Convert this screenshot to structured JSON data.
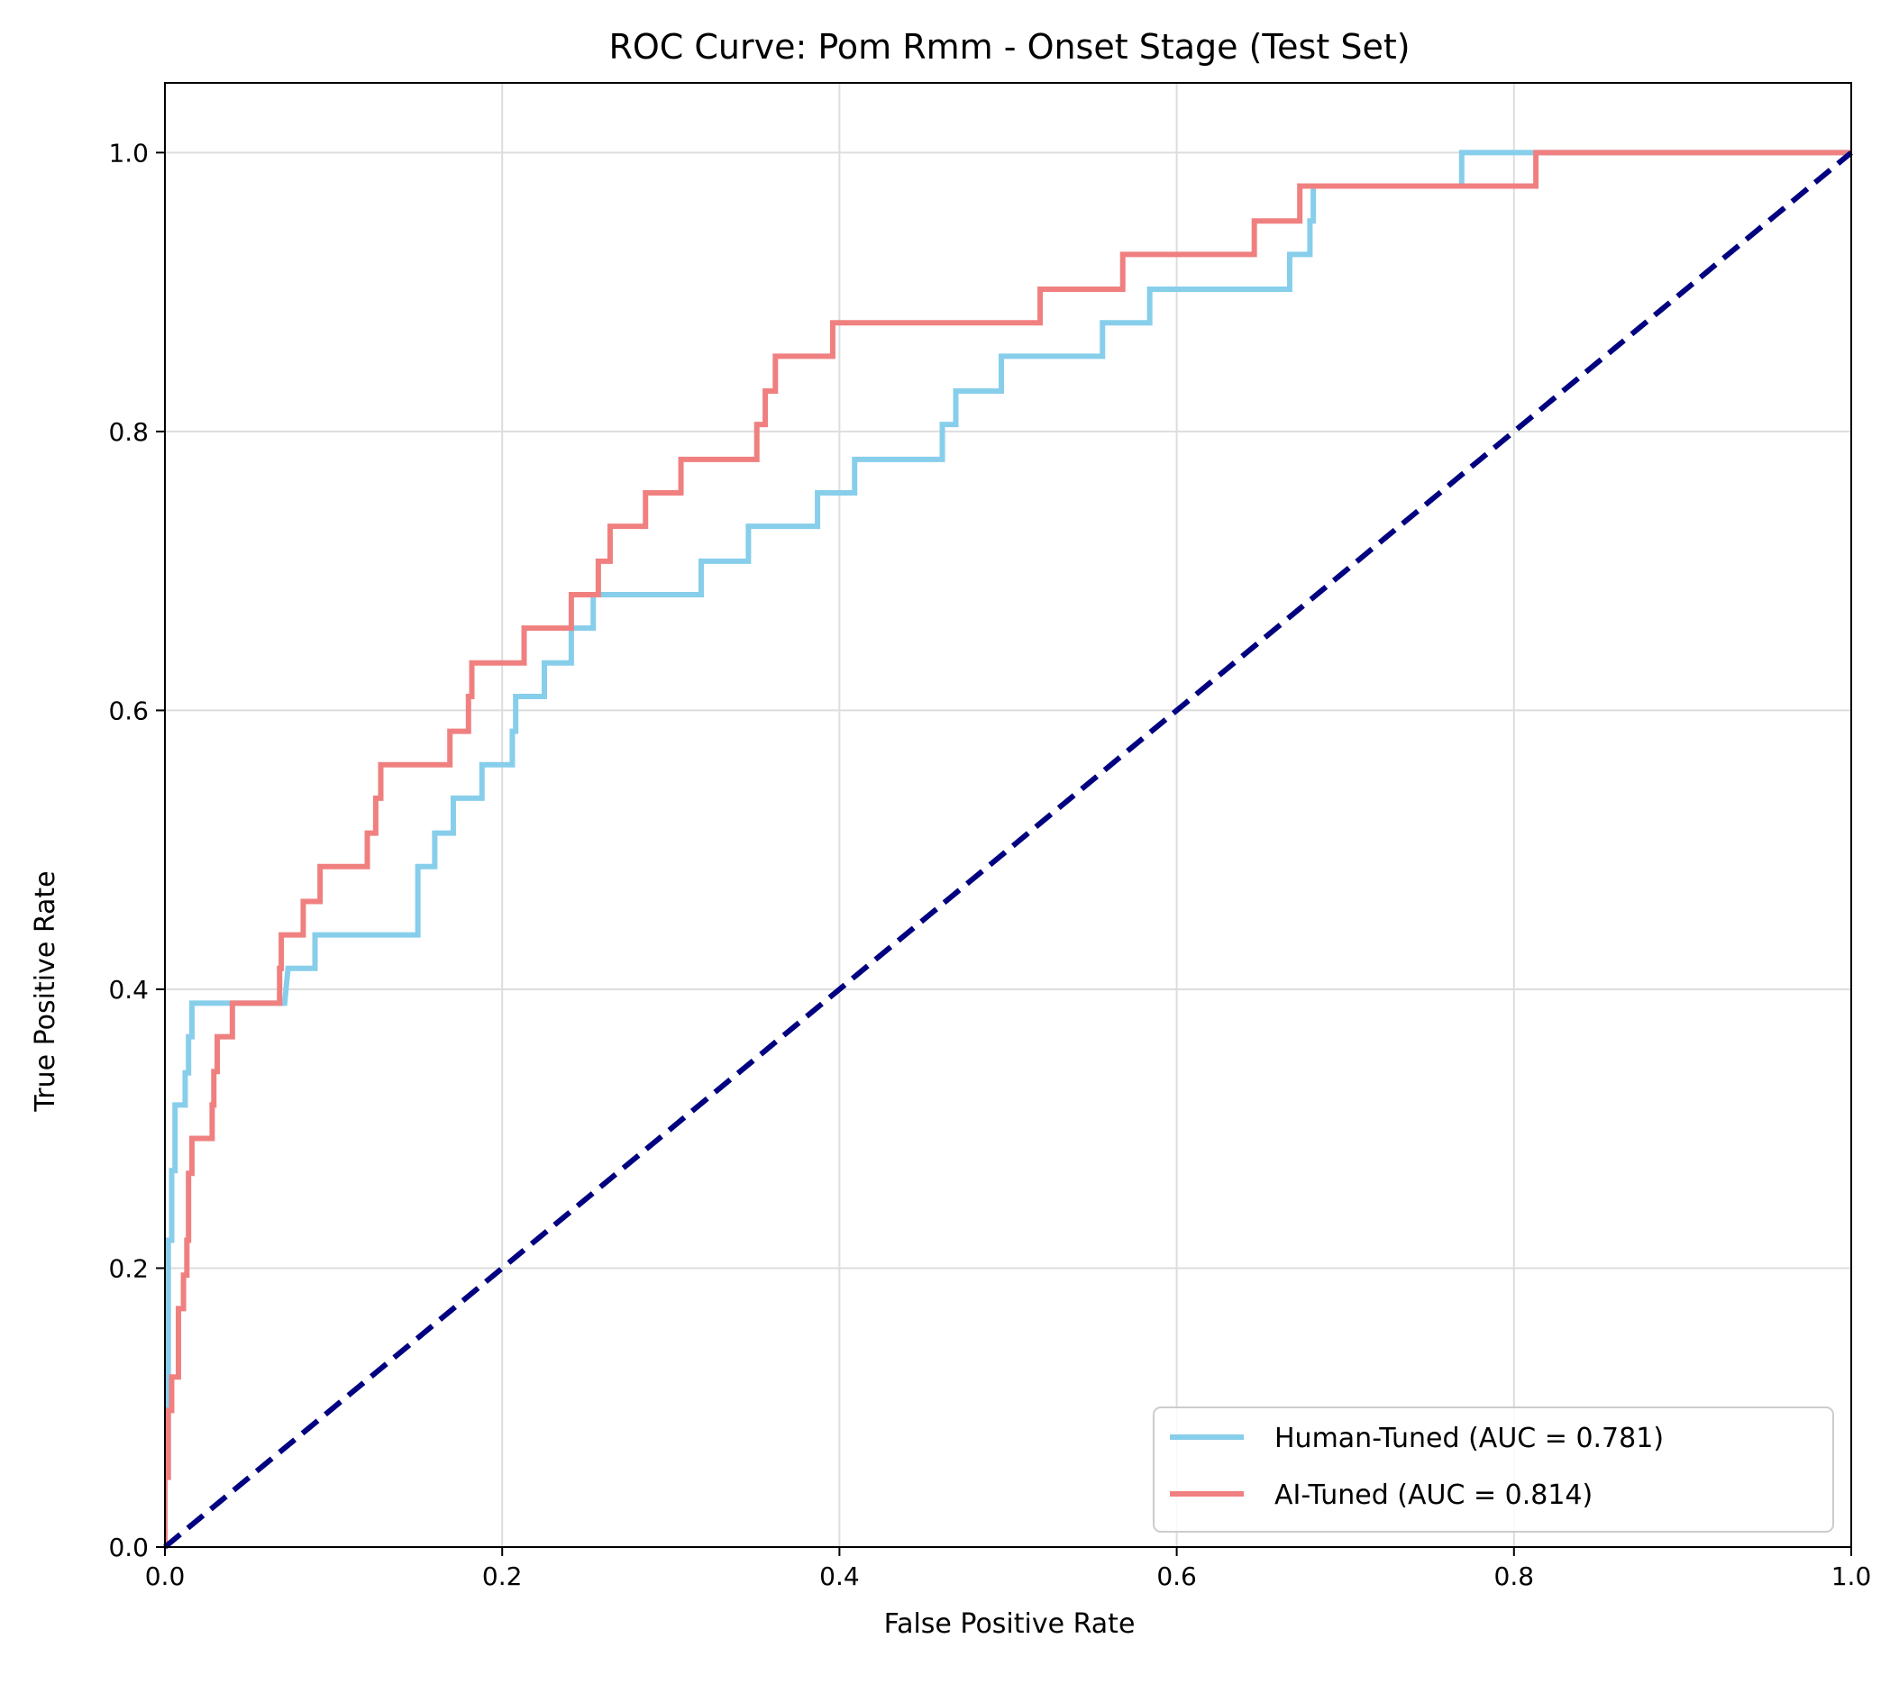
{
  "chart_data": {
    "type": "line",
    "title": "ROC Curve: Pom Rmm - Onset Stage (Test Set)",
    "xlabel": "False Positive Rate",
    "ylabel": "True Positive Rate",
    "xlim": [
      0.0,
      1.0
    ],
    "ylim": [
      0.0,
      1.05
    ],
    "xticks": [
      "0.0",
      "0.2",
      "0.4",
      "0.6",
      "0.8",
      "1.0"
    ],
    "yticks": [
      "0.0",
      "0.2",
      "0.4",
      "0.6",
      "0.8",
      "1.0"
    ],
    "grid": true,
    "legend_position": "bottom-right",
    "reference_line": {
      "x": [
        0,
        1
      ],
      "y": [
        0,
        1
      ],
      "color": "#000080",
      "style": "dashed"
    },
    "series": [
      {
        "name": "Human-Tuned (AUC = 0.781)",
        "color": "#87CEEB",
        "points": [
          [
            0,
            0
          ],
          [
            0,
            0.1
          ],
          [
            0.002,
            0.1
          ],
          [
            0.002,
            0.22
          ],
          [
            0.004,
            0.22
          ],
          [
            0.004,
            0.27
          ],
          [
            0.006,
            0.27
          ],
          [
            0.006,
            0.317
          ],
          [
            0.012,
            0.317
          ],
          [
            0.012,
            0.34
          ],
          [
            0.014,
            0.34
          ],
          [
            0.014,
            0.366
          ],
          [
            0.016,
            0.366
          ],
          [
            0.016,
            0.39
          ],
          [
            0.071,
            0.39
          ],
          [
            0.073,
            0.415
          ],
          [
            0.089,
            0.415
          ],
          [
            0.089,
            0.439
          ],
          [
            0.15,
            0.439
          ],
          [
            0.15,
            0.488
          ],
          [
            0.16,
            0.488
          ],
          [
            0.16,
            0.512
          ],
          [
            0.171,
            0.512
          ],
          [
            0.171,
            0.537
          ],
          [
            0.188,
            0.537
          ],
          [
            0.188,
            0.561
          ],
          [
            0.206,
            0.561
          ],
          [
            0.206,
            0.585
          ],
          [
            0.208,
            0.585
          ],
          [
            0.208,
            0.61
          ],
          [
            0.225,
            0.61
          ],
          [
            0.225,
            0.634
          ],
          [
            0.241,
            0.634
          ],
          [
            0.241,
            0.659
          ],
          [
            0.254,
            0.659
          ],
          [
            0.254,
            0.683
          ],
          [
            0.318,
            0.683
          ],
          [
            0.318,
            0.707
          ],
          [
            0.346,
            0.707
          ],
          [
            0.346,
            0.732
          ],
          [
            0.387,
            0.732
          ],
          [
            0.387,
            0.756
          ],
          [
            0.409,
            0.756
          ],
          [
            0.409,
            0.78
          ],
          [
            0.461,
            0.78
          ],
          [
            0.461,
            0.805
          ],
          [
            0.469,
            0.805
          ],
          [
            0.469,
            0.829
          ],
          [
            0.496,
            0.829
          ],
          [
            0.496,
            0.854
          ],
          [
            0.556,
            0.854
          ],
          [
            0.556,
            0.878
          ],
          [
            0.584,
            0.878
          ],
          [
            0.584,
            0.902
          ],
          [
            0.667,
            0.902
          ],
          [
            0.667,
            0.927
          ],
          [
            0.679,
            0.927
          ],
          [
            0.679,
            0.951
          ],
          [
            0.681,
            0.951
          ],
          [
            0.681,
            0.976
          ],
          [
            0.769,
            0.976
          ],
          [
            0.769,
            1.0
          ],
          [
            0.812,
            1.0
          ],
          [
            0.812,
            1.0
          ],
          [
            1.0,
            1.0
          ]
        ]
      },
      {
        "name": "AI-Tuned (AUC = 0.814)",
        "color": "#F08080",
        "points": [
          [
            0,
            0
          ],
          [
            0,
            0.05
          ],
          [
            0.002,
            0.05
          ],
          [
            0.002,
            0.098
          ],
          [
            0.004,
            0.098
          ],
          [
            0.004,
            0.122
          ],
          [
            0.008,
            0.122
          ],
          [
            0.008,
            0.171
          ],
          [
            0.011,
            0.171
          ],
          [
            0.011,
            0.195
          ],
          [
            0.013,
            0.195
          ],
          [
            0.013,
            0.22
          ],
          [
            0.014,
            0.22
          ],
          [
            0.014,
            0.268
          ],
          [
            0.016,
            0.268
          ],
          [
            0.016,
            0.293
          ],
          [
            0.028,
            0.293
          ],
          [
            0.028,
            0.317
          ],
          [
            0.029,
            0.317
          ],
          [
            0.029,
            0.341
          ],
          [
            0.031,
            0.341
          ],
          [
            0.031,
            0.366
          ],
          [
            0.04,
            0.366
          ],
          [
            0.04,
            0.39
          ],
          [
            0.068,
            0.39
          ],
          [
            0.068,
            0.415
          ],
          [
            0.069,
            0.415
          ],
          [
            0.069,
            0.439
          ],
          [
            0.082,
            0.439
          ],
          [
            0.082,
            0.463
          ],
          [
            0.092,
            0.463
          ],
          [
            0.092,
            0.488
          ],
          [
            0.12,
            0.488
          ],
          [
            0.12,
            0.512
          ],
          [
            0.125,
            0.512
          ],
          [
            0.125,
            0.537
          ],
          [
            0.128,
            0.537
          ],
          [
            0.128,
            0.561
          ],
          [
            0.169,
            0.561
          ],
          [
            0.169,
            0.585
          ],
          [
            0.18,
            0.585
          ],
          [
            0.18,
            0.61
          ],
          [
            0.182,
            0.61
          ],
          [
            0.182,
            0.634
          ],
          [
            0.213,
            0.634
          ],
          [
            0.213,
            0.659
          ],
          [
            0.241,
            0.659
          ],
          [
            0.241,
            0.683
          ],
          [
            0.257,
            0.683
          ],
          [
            0.257,
            0.707
          ],
          [
            0.264,
            0.707
          ],
          [
            0.264,
            0.732
          ],
          [
            0.285,
            0.732
          ],
          [
            0.285,
            0.756
          ],
          [
            0.306,
            0.756
          ],
          [
            0.306,
            0.78
          ],
          [
            0.351,
            0.78
          ],
          [
            0.351,
            0.805
          ],
          [
            0.356,
            0.805
          ],
          [
            0.356,
            0.829
          ],
          [
            0.362,
            0.829
          ],
          [
            0.362,
            0.854
          ],
          [
            0.396,
            0.854
          ],
          [
            0.396,
            0.878
          ],
          [
            0.519,
            0.878
          ],
          [
            0.519,
            0.902
          ],
          [
            0.568,
            0.902
          ],
          [
            0.568,
            0.927
          ],
          [
            0.646,
            0.927
          ],
          [
            0.646,
            0.951
          ],
          [
            0.673,
            0.951
          ],
          [
            0.673,
            0.976
          ],
          [
            0.813,
            0.976
          ],
          [
            0.813,
            1.0
          ],
          [
            1.0,
            1.0
          ]
        ]
      }
    ]
  }
}
